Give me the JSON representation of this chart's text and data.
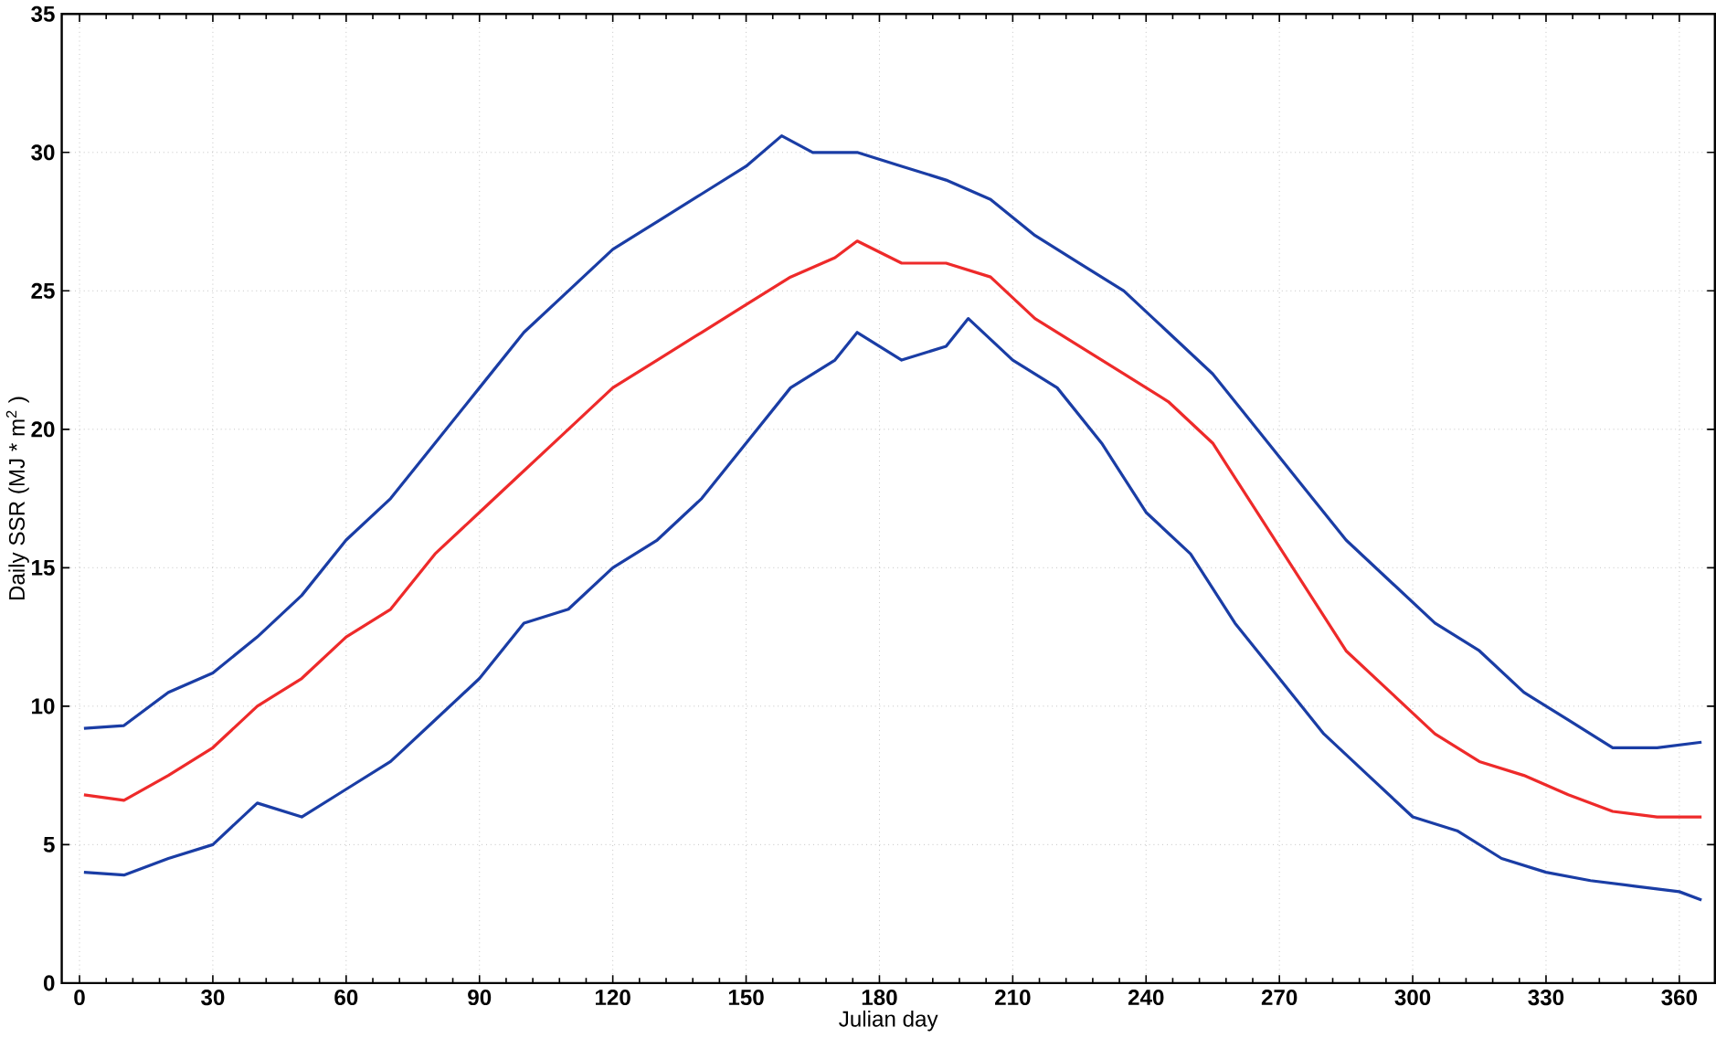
{
  "chart_data": {
    "type": "line",
    "xlabel": "Julian day",
    "ylabel": "Daily SSR (MJ * m$^{2}$ )",
    "xlim": [
      -4,
      368
    ],
    "ylim": [
      0,
      35
    ],
    "xticks": [
      0,
      30,
      60,
      90,
      120,
      150,
      180,
      210,
      240,
      270,
      300,
      330,
      360
    ],
    "yticks": [
      0,
      5,
      10,
      15,
      20,
      25,
      30,
      35
    ],
    "grid": true,
    "marker": "none",
    "line_style": "solid",
    "series": [
      {
        "color": "#1a3da5",
        "x": [
          1,
          10,
          20,
          30,
          40,
          50,
          60,
          70,
          80,
          90,
          100,
          110,
          120,
          130,
          140,
          150,
          158,
          165,
          175,
          185,
          195,
          205,
          215,
          225,
          235,
          245,
          255,
          265,
          275,
          285,
          295,
          305,
          315,
          325,
          335,
          345,
          355,
          365
        ],
        "values": [
          9.2,
          9.3,
          10.5,
          11.2,
          12.5,
          14,
          16,
          17.5,
          19.5,
          21.5,
          23.5,
          25,
          26.5,
          27.5,
          28.5,
          29.5,
          30.6,
          30,
          30,
          29.5,
          29,
          28.3,
          27,
          26,
          25,
          23.5,
          22,
          20,
          18,
          16,
          14.5,
          13,
          12,
          10.5,
          9.5,
          8.5,
          8.5,
          8.7
        ]
      },
      {
        "color": "#ee2a2a",
        "x": [
          1,
          10,
          20,
          30,
          40,
          50,
          60,
          70,
          80,
          90,
          100,
          110,
          120,
          130,
          140,
          150,
          160,
          170,
          175,
          185,
          195,
          205,
          215,
          225,
          235,
          245,
          255,
          265,
          275,
          285,
          295,
          305,
          315,
          325,
          335,
          345,
          355,
          365
        ],
        "values": [
          6.8,
          6.6,
          7.5,
          8.5,
          10,
          11,
          12.5,
          13.5,
          15.5,
          17,
          18.5,
          20,
          21.5,
          22.5,
          23.5,
          24.5,
          25.5,
          26.2,
          26.8,
          26,
          26,
          25.5,
          24,
          23,
          22,
          21,
          19.5,
          17,
          14.5,
          12,
          10.5,
          9,
          8,
          7.5,
          6.8,
          6.2,
          6,
          6
        ]
      },
      {
        "color": "#1a3da5",
        "x": [
          1,
          10,
          20,
          30,
          40,
          50,
          60,
          70,
          80,
          90,
          100,
          110,
          120,
          130,
          140,
          150,
          160,
          170,
          175,
          185,
          195,
          200,
          210,
          220,
          230,
          240,
          250,
          260,
          270,
          280,
          290,
          300,
          310,
          320,
          330,
          340,
          350,
          360,
          365
        ],
        "values": [
          4,
          3.9,
          4.5,
          5,
          6.5,
          6,
          7,
          8,
          9.5,
          11,
          13,
          13.5,
          15,
          16,
          17.5,
          19.5,
          21.5,
          22.5,
          23.5,
          22.5,
          23,
          24,
          22.5,
          21.5,
          19.5,
          17,
          15.5,
          13,
          11,
          9,
          7.5,
          6,
          5.5,
          4.5,
          4,
          3.7,
          3.5,
          3.3,
          3
        ]
      }
    ]
  }
}
